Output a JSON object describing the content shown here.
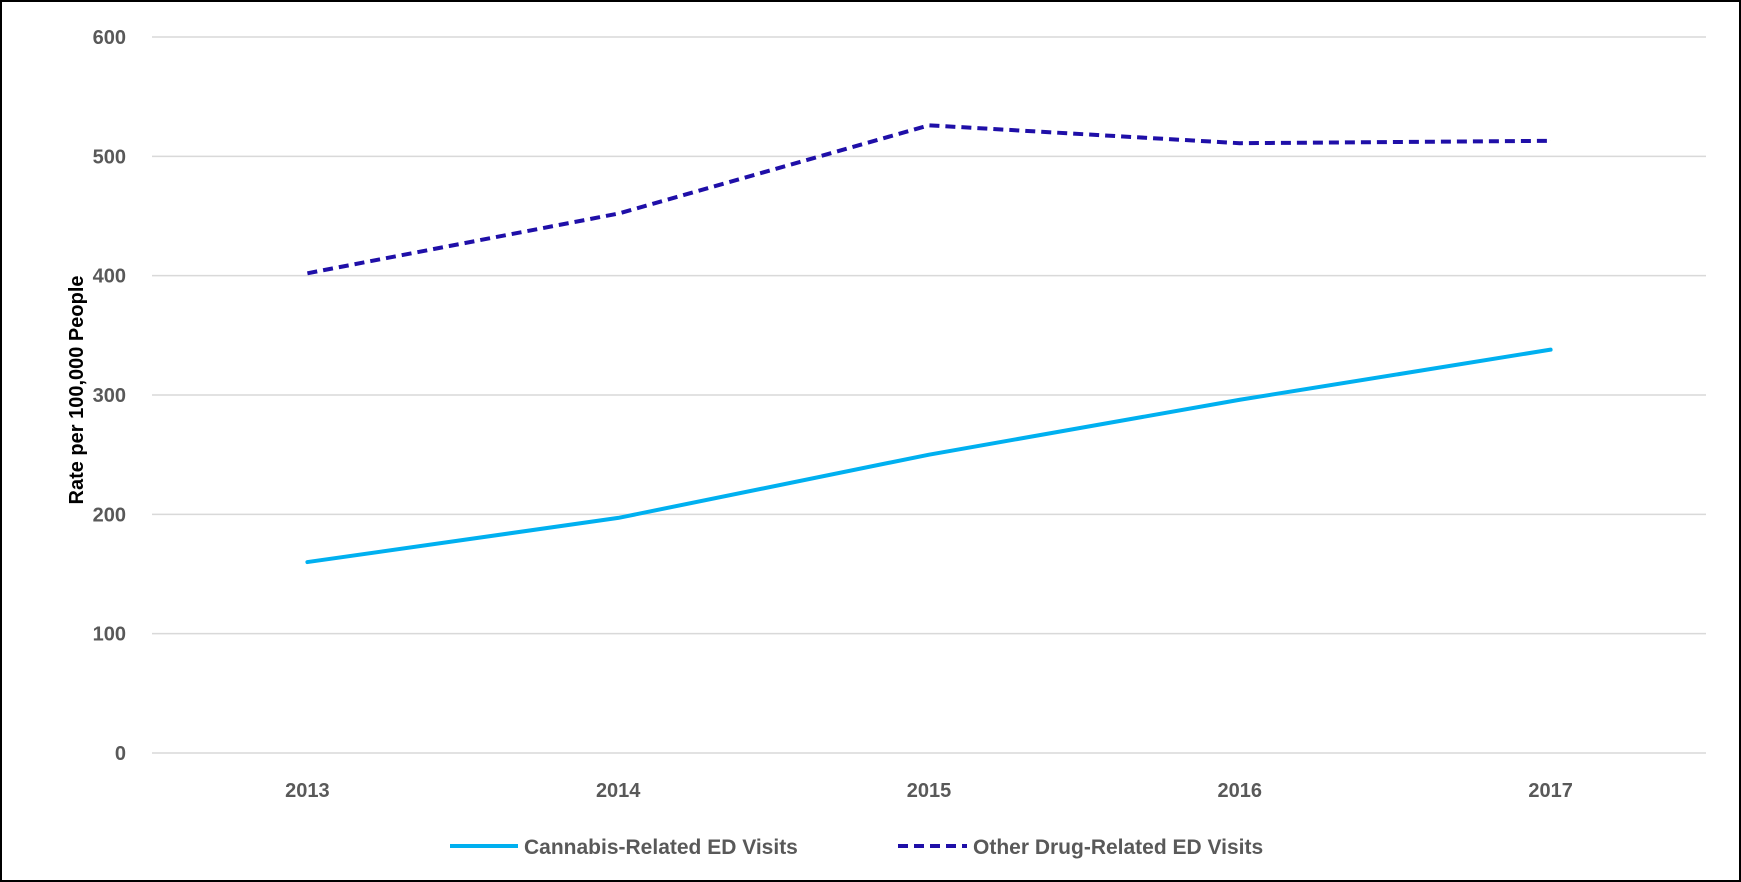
{
  "chart_data": {
    "type": "line",
    "title": "",
    "xlabel": "",
    "ylabel": "Rate per 100,000 People",
    "categories": [
      "2013",
      "2014",
      "2015",
      "2016",
      "2017"
    ],
    "ylim": [
      0,
      600
    ],
    "yticks": [
      0,
      100,
      200,
      300,
      400,
      500,
      600
    ],
    "grid": true,
    "legend_position": "bottom",
    "series": [
      {
        "name": "Cannabis-Related ED Visits",
        "values": [
          160,
          197,
          250,
          296,
          338
        ],
        "color": "#00B0F0",
        "style": "solid"
      },
      {
        "name": "Other Drug-Related ED Visits",
        "values": [
          402,
          452,
          526,
          511,
          513
        ],
        "color": "#1F0FA8",
        "style": "dashed"
      }
    ]
  }
}
